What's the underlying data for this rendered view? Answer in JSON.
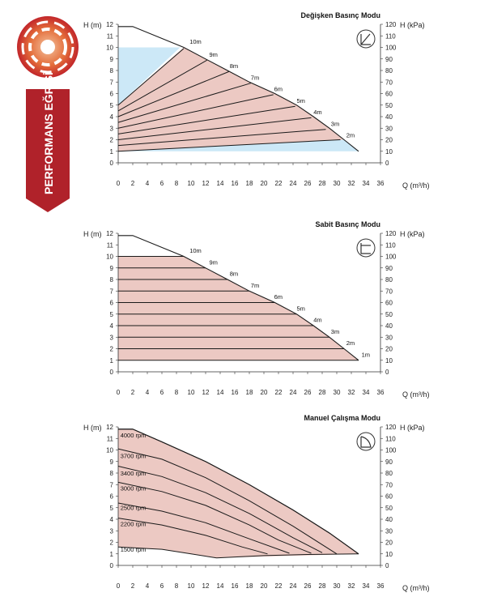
{
  "brand": {
    "vertical_label": "PERFORMANS EĞRİSİ",
    "accent": "#b0222a"
  },
  "colors": {
    "region_fill": "#ecc9c3",
    "blue_fill": "#cce8f7",
    "line": "#1a1a1a",
    "axis_text": "#222222"
  },
  "chart_data": [
    {
      "type": "line",
      "title": "Değişken Basınç Modu",
      "icon": "proportional-pressure-icon",
      "xlabel": "Q (m³/h)",
      "ylabel": "H (m)",
      "y2label": "H (kPa)",
      "xlim": [
        0,
        36
      ],
      "ylim": [
        0,
        12
      ],
      "y2lim": [
        0,
        120
      ],
      "xticks": [
        0,
        2,
        4,
        6,
        8,
        10,
        12,
        14,
        16,
        18,
        20,
        22,
        24,
        26,
        28,
        30,
        32,
        34,
        36
      ],
      "yticks": [
        0,
        1,
        2,
        3,
        4,
        5,
        6,
        7,
        8,
        9,
        10,
        11,
        12
      ],
      "y2ticks": [
        0,
        10,
        20,
        30,
        40,
        50,
        60,
        70,
        80,
        90,
        100,
        110,
        120
      ],
      "envelope": [
        [
          0,
          11.8
        ],
        [
          2,
          11.8
        ],
        [
          9,
          10
        ],
        [
          12,
          9
        ],
        [
          15,
          8
        ],
        [
          18,
          7
        ],
        [
          21.5,
          6
        ],
        [
          24.5,
          5
        ],
        [
          26.8,
          4
        ],
        [
          29,
          3
        ],
        [
          31,
          2
        ],
        [
          33,
          1
        ]
      ],
      "blue_region": [
        [
          0,
          10
        ],
        [
          8.5,
          10
        ],
        [
          0,
          5
        ],
        [
          0,
          1
        ],
        [
          33,
          1
        ],
        [
          31,
          2
        ],
        [
          0,
          1
        ]
      ],
      "series": [
        {
          "name": "2m",
          "points": [
            [
              0,
              1
            ],
            [
              30.5,
              2.0
            ]
          ],
          "label_at": [
            31.3,
            2.2
          ]
        },
        {
          "name": "3m",
          "points": [
            [
              0,
              1.5
            ],
            [
              28.5,
              2.9
            ]
          ],
          "label_at": [
            29.2,
            3.2
          ]
        },
        {
          "name": "4m",
          "points": [
            [
              0,
              2.0
            ],
            [
              26.5,
              3.9
            ]
          ],
          "label_at": [
            26.8,
            4.2
          ]
        },
        {
          "name": "5m",
          "points": [
            [
              0,
              2.5
            ],
            [
              24.3,
              4.9
            ]
          ],
          "label_at": [
            24.5,
            5.2
          ]
        },
        {
          "name": "6m",
          "points": [
            [
              0,
              3.0
            ],
            [
              21.3,
              5.9
            ]
          ],
          "label_at": [
            21.4,
            6.2
          ]
        },
        {
          "name": "7m",
          "points": [
            [
              0,
              3.5
            ],
            [
              18.2,
              6.9
            ]
          ],
          "label_at": [
            18.2,
            7.2
          ]
        },
        {
          "name": "8m",
          "points": [
            [
              0,
              4.0
            ],
            [
              15.2,
              7.9
            ]
          ],
          "label_at": [
            15.3,
            8.2
          ]
        },
        {
          "name": "9m",
          "points": [
            [
              0,
              4.5
            ],
            [
              12.2,
              8.9
            ]
          ],
          "label_at": [
            12.5,
            9.2
          ]
        },
        {
          "name": "10m",
          "points": [
            [
              0,
              5.0
            ],
            [
              9.0,
              9.9
            ]
          ],
          "label_at": [
            9.8,
            10.3
          ]
        }
      ]
    },
    {
      "type": "line",
      "title": "Sabit Basınç Modu",
      "icon": "constant-pressure-icon",
      "xlabel": "Q (m³/h)",
      "ylabel": "H (m)",
      "y2label": "H (kPa)",
      "xlim": [
        0,
        36
      ],
      "ylim": [
        0,
        12
      ],
      "y2lim": [
        0,
        120
      ],
      "xticks": [
        0,
        2,
        4,
        6,
        8,
        10,
        12,
        14,
        16,
        18,
        20,
        22,
        24,
        26,
        28,
        30,
        32,
        34,
        36
      ],
      "yticks": [
        0,
        1,
        2,
        3,
        4,
        5,
        6,
        7,
        8,
        9,
        10,
        11,
        12
      ],
      "y2ticks": [
        0,
        10,
        20,
        30,
        40,
        50,
        60,
        70,
        80,
        90,
        100,
        110,
        120
      ],
      "envelope": [
        [
          0,
          11.8
        ],
        [
          2,
          11.8
        ],
        [
          9,
          10
        ],
        [
          12,
          9
        ],
        [
          15,
          8
        ],
        [
          18,
          7
        ],
        [
          21.5,
          6
        ],
        [
          24.5,
          5
        ],
        [
          26.8,
          4
        ],
        [
          29,
          3
        ],
        [
          31,
          2
        ],
        [
          33,
          1
        ]
      ],
      "series": [
        {
          "name": "1m",
          "points": [
            [
              0,
              1
            ],
            [
              33,
              1
            ]
          ],
          "label_at": [
            33.4,
            1.3
          ]
        },
        {
          "name": "2m",
          "points": [
            [
              0,
              2
            ],
            [
              31,
              2
            ]
          ],
          "label_at": [
            31.3,
            2.3
          ]
        },
        {
          "name": "3m",
          "points": [
            [
              0,
              3
            ],
            [
              29,
              3
            ]
          ],
          "label_at": [
            29.2,
            3.3
          ]
        },
        {
          "name": "4m",
          "points": [
            [
              0,
              4
            ],
            [
              26.8,
              4
            ]
          ],
          "label_at": [
            26.8,
            4.3
          ]
        },
        {
          "name": "5m",
          "points": [
            [
              0,
              5
            ],
            [
              24.5,
              5
            ]
          ],
          "label_at": [
            24.5,
            5.3
          ]
        },
        {
          "name": "6m",
          "points": [
            [
              0,
              6
            ],
            [
              21.5,
              6
            ]
          ],
          "label_at": [
            21.4,
            6.3
          ]
        },
        {
          "name": "7m",
          "points": [
            [
              0,
              7
            ],
            [
              18,
              7
            ]
          ],
          "label_at": [
            18.2,
            7.3
          ]
        },
        {
          "name": "8m",
          "points": [
            [
              0,
              8
            ],
            [
              15,
              8
            ]
          ],
          "label_at": [
            15.3,
            8.3
          ]
        },
        {
          "name": "9m",
          "points": [
            [
              0,
              9
            ],
            [
              12,
              9
            ]
          ],
          "label_at": [
            12.5,
            9.3
          ]
        },
        {
          "name": "10m",
          "points": [
            [
              0,
              10
            ],
            [
              9,
              10
            ]
          ],
          "label_at": [
            9.8,
            10.3
          ]
        }
      ]
    },
    {
      "type": "line",
      "title": "Manuel Çalışma Modu",
      "icon": "manual-mode-icon",
      "xlabel": "Q (m³/h)",
      "ylabel": "H (m)",
      "y2label": "H (kPa)",
      "xlim": [
        0,
        36
      ],
      "ylim": [
        0,
        12
      ],
      "y2lim": [
        0,
        120
      ],
      "xticks": [
        0,
        2,
        4,
        6,
        8,
        10,
        12,
        14,
        16,
        18,
        20,
        22,
        24,
        26,
        28,
        30,
        32,
        34,
        36
      ],
      "yticks": [
        0,
        1,
        2,
        3,
        4,
        5,
        6,
        7,
        8,
        9,
        10,
        11,
        12
      ],
      "y2ticks": [
        0,
        10,
        20,
        30,
        40,
        50,
        60,
        70,
        80,
        90,
        100,
        110,
        120
      ],
      "series": [
        {
          "name": "4000 rpm",
          "points": [
            [
              0,
              11.8
            ],
            [
              2,
              11.8
            ],
            [
              6,
              10.7
            ],
            [
              12,
              9
            ],
            [
              18,
              7
            ],
            [
              24,
              4.8
            ],
            [
              29,
              2.8
            ],
            [
              33,
              1
            ]
          ],
          "label_at": [
            0.3,
            11.1
          ]
        },
        {
          "name": "3700 rpm",
          "points": [
            [
              0,
              10.1
            ],
            [
              6,
              9.2
            ],
            [
              12,
              7.6
            ],
            [
              18,
              5.6
            ],
            [
              24,
              3.4
            ],
            [
              30,
              1
            ]
          ],
          "label_at": [
            0.3,
            9.3
          ]
        },
        {
          "name": "3400 rpm",
          "points": [
            [
              0,
              8.6
            ],
            [
              6,
              7.7
            ],
            [
              12,
              6.3
            ],
            [
              18,
              4.5
            ],
            [
              24,
              2.4
            ],
            [
              28,
              1.1
            ]
          ],
          "label_at": [
            0.3,
            7.8
          ]
        },
        {
          "name": "3000 rpm",
          "points": [
            [
              0,
              7.2
            ],
            [
              6,
              6.4
            ],
            [
              12,
              5.2
            ],
            [
              18,
              3.5
            ],
            [
              22,
              2.2
            ],
            [
              26.5,
              1.05
            ]
          ],
          "label_at": [
            0.3,
            6.5
          ]
        },
        {
          "name": "2500 rpm",
          "points": [
            [
              0,
              5.4
            ],
            [
              6,
              4.7
            ],
            [
              12,
              3.7
            ],
            [
              18,
              2.3
            ],
            [
              23.5,
              1.05
            ]
          ],
          "label_at": [
            0.3,
            4.8
          ]
        },
        {
          "name": "2200 rpm",
          "points": [
            [
              0,
              4.1
            ],
            [
              6,
              3.5
            ],
            [
              12,
              2.6
            ],
            [
              17,
              1.6
            ],
            [
              20.5,
              1.0
            ]
          ],
          "label_at": [
            0.3,
            3.4
          ]
        },
        {
          "name": "1500 rpm",
          "points": [
            [
              0,
              1.6
            ],
            [
              6,
              1.4
            ],
            [
              10,
              1.0
            ],
            [
              13.5,
              0.65
            ]
          ],
          "label_at": [
            0.3,
            1.2
          ]
        }
      ],
      "envelope": [
        [
          0,
          11.8
        ],
        [
          2,
          11.8
        ],
        [
          6,
          10.7
        ],
        [
          12,
          9
        ],
        [
          18,
          7
        ],
        [
          24,
          4.8
        ],
        [
          29,
          2.8
        ],
        [
          33,
          1
        ],
        [
          25,
          0.85
        ],
        [
          13.5,
          0.65
        ],
        [
          6,
          1.4
        ],
        [
          0,
          1.6
        ]
      ],
      "bottom_line": [
        [
          13.5,
          0.65
        ],
        [
          20,
          0.85
        ],
        [
          26,
          0.95
        ],
        [
          33,
          1.0
        ]
      ]
    }
  ]
}
